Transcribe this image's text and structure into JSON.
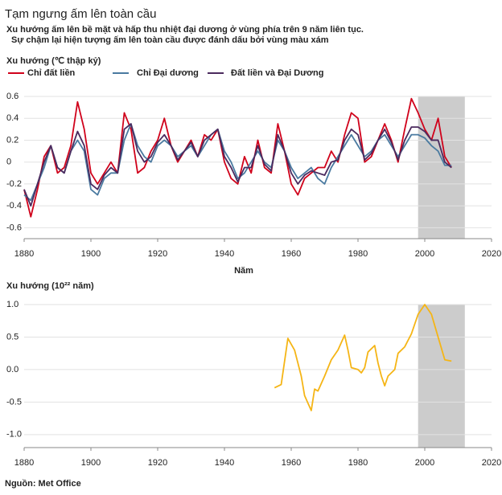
{
  "source": "Nguồn: Met Office",
  "chart_data": [
    {
      "type": "line",
      "title": "Tạm ngưng ấm lên toàn cầu",
      "subtitle": [
        "Xu hướng ấm lên bề mặt và hấp thu nhiệt đại dương ở vùng phía trên 9 năm liên tục.",
        "Sự chậm lại hiện tượng ấm lên toàn cầu được đánh dấu bởi vùng màu xám"
      ],
      "ylabel": "Xu hướng (℃ thập kỷ)",
      "xlabel": "Năm",
      "x": [
        1880,
        1882,
        1884,
        1886,
        1888,
        1890,
        1892,
        1894,
        1896,
        1898,
        1900,
        1902,
        1904,
        1906,
        1908,
        1910,
        1912,
        1914,
        1916,
        1918,
        1920,
        1922,
        1924,
        1926,
        1928,
        1930,
        1932,
        1934,
        1936,
        1938,
        1940,
        1942,
        1944,
        1946,
        1948,
        1950,
        1952,
        1954,
        1956,
        1958,
        1960,
        1962,
        1964,
        1966,
        1968,
        1970,
        1972,
        1974,
        1976,
        1978,
        1980,
        1982,
        1984,
        1986,
        1988,
        1990,
        1992,
        1994,
        1996,
        1998,
        2000,
        2002,
        2004,
        2006,
        2008
      ],
      "series": [
        {
          "name": "Chỉ đất liền",
          "color": "#d0021b",
          "values": [
            -0.25,
            -0.5,
            -0.25,
            0.05,
            0.15,
            -0.1,
            -0.05,
            0.15,
            0.55,
            0.3,
            -0.1,
            -0.2,
            -0.1,
            0.0,
            -0.1,
            0.45,
            0.3,
            -0.1,
            -0.05,
            0.1,
            0.2,
            0.4,
            0.15,
            0.0,
            0.1,
            0.2,
            0.05,
            0.25,
            0.2,
            0.3,
            0.0,
            -0.15,
            -0.2,
            0.05,
            -0.1,
            0.2,
            -0.05,
            -0.1,
            0.35,
            0.1,
            -0.2,
            -0.3,
            -0.15,
            -0.1,
            -0.05,
            -0.05,
            0.1,
            0.0,
            0.25,
            0.45,
            0.4,
            0.0,
            0.05,
            0.2,
            0.35,
            0.2,
            0.0,
            0.3,
            0.58,
            0.45,
            0.3,
            0.2,
            0.4,
            0.05,
            -0.05
          ]
        },
        {
          "name": "Chỉ Đại dương",
          "color": "#4a7aa0",
          "values": [
            -0.3,
            -0.35,
            -0.2,
            -0.05,
            0.15,
            -0.05,
            -0.1,
            0.1,
            0.2,
            0.1,
            -0.25,
            -0.3,
            -0.15,
            -0.1,
            -0.1,
            0.2,
            0.35,
            0.15,
            0.05,
            0.0,
            0.15,
            0.2,
            0.15,
            0.05,
            0.1,
            0.15,
            0.05,
            0.15,
            0.25,
            0.3,
            0.1,
            0.0,
            -0.15,
            -0.1,
            0.0,
            0.1,
            0.0,
            -0.05,
            0.2,
            0.1,
            -0.05,
            -0.15,
            -0.1,
            -0.05,
            -0.15,
            -0.2,
            -0.05,
            0.05,
            0.15,
            0.25,
            0.15,
            0.05,
            0.1,
            0.2,
            0.25,
            0.15,
            0.05,
            0.15,
            0.25,
            0.25,
            0.22,
            0.15,
            0.1,
            -0.03,
            -0.03
          ]
        },
        {
          "name": "Đất liền và Đại Dương",
          "color": "#4b2a5e",
          "values": [
            -0.25,
            -0.4,
            -0.2,
            0.0,
            0.15,
            -0.05,
            -0.1,
            0.1,
            0.28,
            0.15,
            -0.2,
            -0.25,
            -0.12,
            -0.05,
            -0.1,
            0.3,
            0.35,
            0.1,
            0.0,
            0.05,
            0.18,
            0.25,
            0.15,
            0.02,
            0.1,
            0.18,
            0.05,
            0.2,
            0.25,
            0.3,
            0.05,
            -0.05,
            -0.18,
            -0.05,
            -0.05,
            0.15,
            -0.02,
            -0.08,
            0.25,
            0.1,
            -0.1,
            -0.2,
            -0.12,
            -0.08,
            -0.1,
            -0.12,
            0.0,
            0.02,
            0.2,
            0.3,
            0.25,
            0.02,
            0.08,
            0.2,
            0.3,
            0.18,
            0.02,
            0.2,
            0.32,
            0.32,
            0.28,
            0.2,
            0.2,
            0.0,
            -0.05
          ]
        }
      ],
      "shade": [
        1998,
        2012
      ],
      "shade_color": "#cccccc",
      "xlim": [
        1880,
        2020
      ],
      "xticks": [
        1880,
        1900,
        1920,
        1940,
        1960,
        1980,
        2000,
        2020
      ],
      "ylim": [
        -0.7,
        0.6
      ],
      "yticks": [
        0.6,
        0.4,
        0.2,
        0.0,
        -0.2,
        -0.4,
        -0.6
      ],
      "grid": true,
      "legend": "top"
    },
    {
      "type": "line",
      "ylabel": "Xu hướng (10²² năm)",
      "x": [
        1955,
        1957,
        1959,
        1961,
        1962,
        1963,
        1964,
        1966,
        1967,
        1968,
        1970,
        1972,
        1974,
        1976,
        1977,
        1978,
        1980,
        1981,
        1982,
        1983,
        1985,
        1986,
        1987,
        1988,
        1989,
        1991,
        1992,
        1994,
        1996,
        1998,
        2000,
        2002,
        2004,
        2006,
        2008
      ],
      "series": [
        {
          "color": "#f5b516",
          "values": [
            -0.28,
            -0.23,
            0.48,
            0.3,
            0.1,
            -0.1,
            -0.4,
            -0.63,
            -0.3,
            -0.33,
            -0.1,
            0.15,
            0.3,
            0.53,
            0.3,
            0.03,
            0.0,
            -0.05,
            0.03,
            0.27,
            0.37,
            0.1,
            -0.1,
            -0.25,
            -0.1,
            0.0,
            0.25,
            0.35,
            0.55,
            0.85,
            1.0,
            0.85,
            0.5,
            0.15,
            0.13
          ]
        }
      ],
      "shade": [
        1998,
        2012
      ],
      "shade_color": "#cccccc",
      "xlim": [
        1880,
        2020
      ],
      "xticks": [
        1880,
        1900,
        1920,
        1940,
        1960,
        1980,
        2000,
        2020
      ],
      "ylim": [
        -1.2,
        1.0
      ],
      "yticks": [
        {
          "value": 1.0,
          "label": "1.0"
        },
        0.5,
        {
          "value": 0.0,
          "label": "0.0"
        },
        -0.5,
        {
          "value": -1.0,
          "label": "-1.0"
        }
      ],
      "grid": true
    }
  ]
}
